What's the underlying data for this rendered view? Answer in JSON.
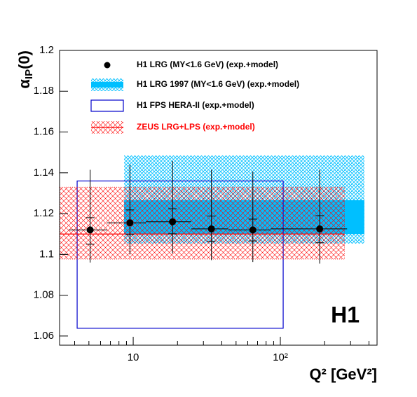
{
  "chart_data": {
    "type": "scatter",
    "xlabel": "Q² [GeV²]",
    "ylabel_parts": [
      "α",
      "IP",
      "(0)"
    ],
    "annotation": "H1",
    "xscale": "log",
    "xlim": [
      3.16,
      454
    ],
    "ylim": [
      1.0555,
      1.2
    ],
    "xticks": [
      10,
      {
        "value": 100,
        "label": "10²"
      }
    ],
    "xminorticks": [
      4,
      5,
      6,
      7,
      8,
      9,
      20,
      30,
      40,
      50,
      60,
      70,
      80,
      90,
      200,
      300,
      400
    ],
    "yticks": [
      1.06,
      1.08,
      1.1,
      1.12,
      1.14,
      1.16,
      1.18,
      1.2
    ],
    "series": [
      {
        "name": "H1 LRG (MY<1.6 GeV)  (exp.+model)",
        "color": "#000000",
        "x": [
          5.1,
          9.5,
          18.5,
          34,
          65,
          185
        ],
        "x_low": [
          3.65,
          6.66,
          12.2,
          24.8,
          44,
          85.8
        ],
        "x_high": [
          6.66,
          12.2,
          24.8,
          44,
          85.8,
          284
        ],
        "values": [
          1.112,
          1.1155,
          1.116,
          1.1125,
          1.112,
          1.1125
        ],
        "err_up": [
          0.0295,
          0.0285,
          0.0298,
          0.029,
          0.0286,
          0.029
        ],
        "err_down": [
          0.016,
          0.0155,
          0.0155,
          0.0153,
          0.0157,
          0.017
        ],
        "exp_err_up": [
          0.006,
          0.0063,
          0.0064,
          0.0063,
          0.0053,
          0.0065
        ],
        "exp_err_down": [
          0.007,
          0.0057,
          0.0059,
          0.006,
          0.0054,
          0.0068
        ]
      }
    ],
    "bands": [
      {
        "name": "H1 LRG 1997 (MY<1.6 GeV)  (exp.+model)",
        "color": "#00bfff",
        "style": "hatch-solid",
        "x_range": [
          8.67,
          372
        ],
        "y_range": [
          1.1053,
          1.1485
        ],
        "inner_y_range": [
          1.11,
          1.1266
        ]
      },
      {
        "name": "H1 FPS HERA-II  (exp.+model)",
        "color": "#0000cc",
        "style": "box",
        "x_range": [
          4.16,
          104.5
        ],
        "y_range": [
          1.0638,
          1.136
        ]
      },
      {
        "name": "ZEUS LRG+LPS (exp.+model)",
        "color": "#ff0000",
        "style": "hatch",
        "x_range": [
          3.16,
          273
        ],
        "y_range": [
          1.0977,
          1.133
        ],
        "central": 1.11
      }
    ]
  }
}
